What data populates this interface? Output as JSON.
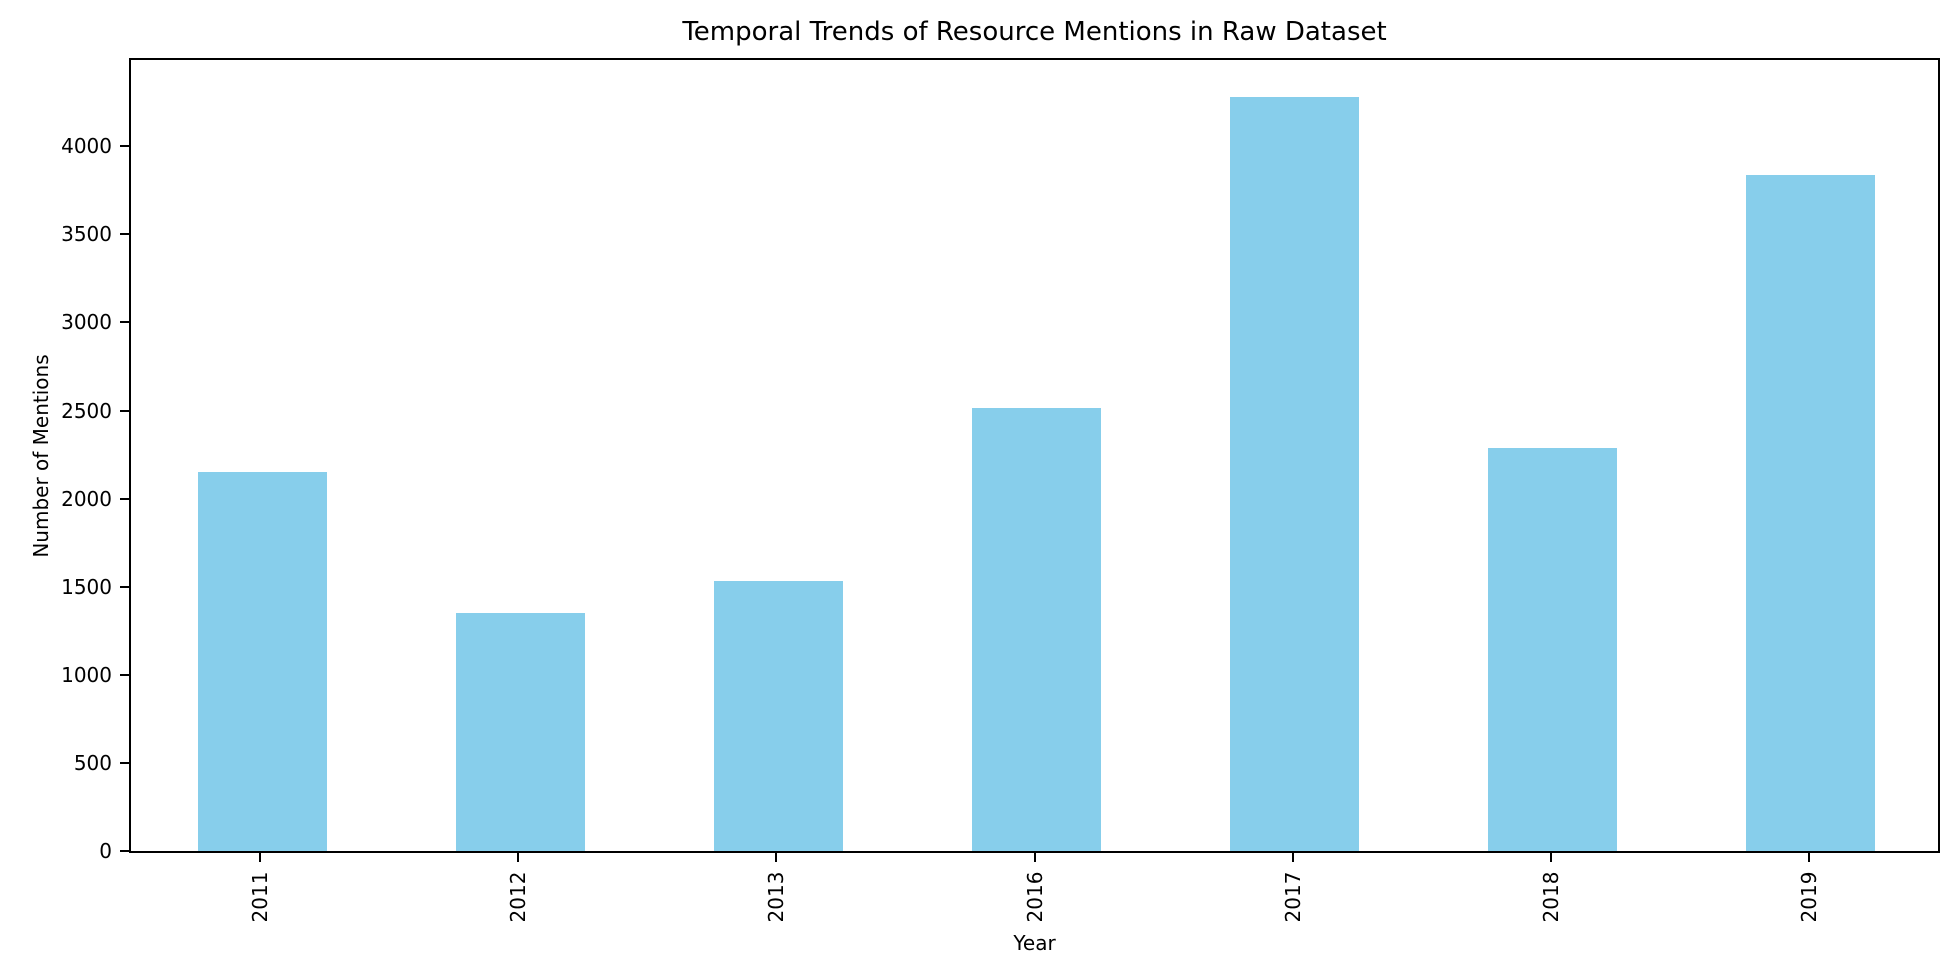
{
  "chart_data": {
    "type": "bar",
    "title": "Temporal Trends of Resource Mentions in Raw Dataset",
    "xlabel": "Year",
    "ylabel": "Number of Mentions",
    "categories": [
      "2011",
      "2012",
      "2013",
      "2016",
      "2017",
      "2018",
      "2019"
    ],
    "values": [
      2150,
      1350,
      1530,
      2515,
      4280,
      2290,
      3840
    ],
    "yticks": [
      0,
      500,
      1000,
      1500,
      2000,
      2500,
      3000,
      3500,
      4000
    ],
    "ylim": [
      0,
      4490
    ],
    "bar_color": "#87CEEB",
    "axis_color": "#000000",
    "text_color": "#000000",
    "background_color": "#ffffff",
    "grid": false,
    "legend": null,
    "x_tick_rotation": 90,
    "bar_width_fraction": 0.5
  }
}
